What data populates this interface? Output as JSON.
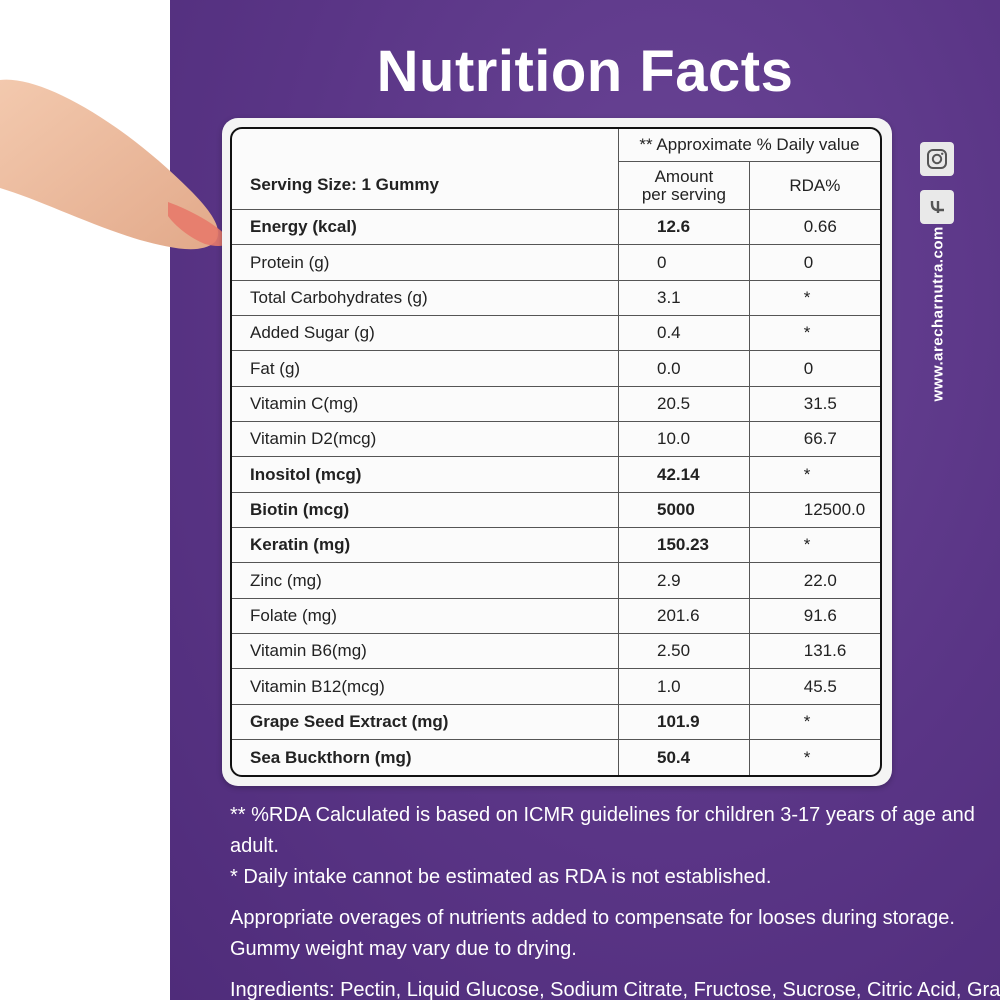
{
  "title": "Nutrition Facts",
  "header": {
    "serving_size": "Serving Size: 1 Gummy",
    "approx_daily": "** Approximate % Daily value",
    "amount_line1": "Amount",
    "amount_line2": "per serving",
    "rda": "RDA%"
  },
  "rows": [
    {
      "name": "Energy (kcal)",
      "amount": "12.6",
      "rda": "0.66",
      "bold": true
    },
    {
      "name": "Protein (g)",
      "amount": "0",
      "rda": "0",
      "bold": false
    },
    {
      "name": "Total Carbohydrates (g)",
      "amount": "3.1",
      "rda": "*",
      "bold": false
    },
    {
      "name": "Added Sugar (g)",
      "amount": "0.4",
      "rda": "*",
      "bold": false
    },
    {
      "name": "Fat (g)",
      "amount": "0.0",
      "rda": "0",
      "bold": false
    },
    {
      "name": "Vitamin C(mg)",
      "amount": "20.5",
      "rda": "31.5",
      "bold": false
    },
    {
      "name": "Vitamin D2(mcg)",
      "amount": "10.0",
      "rda": "66.7",
      "bold": false
    },
    {
      "name": "Inositol (mcg)",
      "amount": "42.14",
      "rda": "*",
      "bold": true
    },
    {
      "name": "Biotin (mcg)",
      "amount": "5000",
      "rda": "12500.0",
      "bold": true
    },
    {
      "name": "Keratin (mg)",
      "amount": "150.23",
      "rda": "*",
      "bold": true
    },
    {
      "name": "Zinc (mg)",
      "amount": "2.9",
      "rda": "22.0",
      "bold": false
    },
    {
      "name": "Folate (mg)",
      "amount": "201.6",
      "rda": "91.6",
      "bold": false
    },
    {
      "name": "Vitamin B6(mg)",
      "amount": "2.50",
      "rda": "131.6",
      "bold": false
    },
    {
      "name": "Vitamin B12(mcg)",
      "amount": "1.0",
      "rda": "45.5",
      "bold": false
    },
    {
      "name": "Grape Seed Extract (mg)",
      "amount": "101.9",
      "rda": "*",
      "bold": true
    },
    {
      "name": "Sea Buckthorn (mg)",
      "amount": "50.4",
      "rda": "*",
      "bold": true
    }
  ],
  "footnotes": {
    "note1": "** %RDA Calculated is based on ICMR guidelines for children 3-17 years of age and adult.",
    "note2": "* Daily intake cannot be estimated as RDA is not established.",
    "note3": "Appropriate overages of nutrients added to compensate for looses during storage.",
    "note4": "Gummy weight may vary due to drying.",
    "ingredients": "Ingredients: Pectin, Liquid Glucose, Sodium Citrate, Fructose, Sucrose, Citric Acid, Grapes Flavo"
  },
  "website": "www.arecharnutra.com",
  "icons": [
    "instagram-icon",
    "facebook-icon"
  ],
  "colors": {
    "panel": "#5a3586",
    "text": "#ffffff",
    "card": "#f4f4f4"
  }
}
